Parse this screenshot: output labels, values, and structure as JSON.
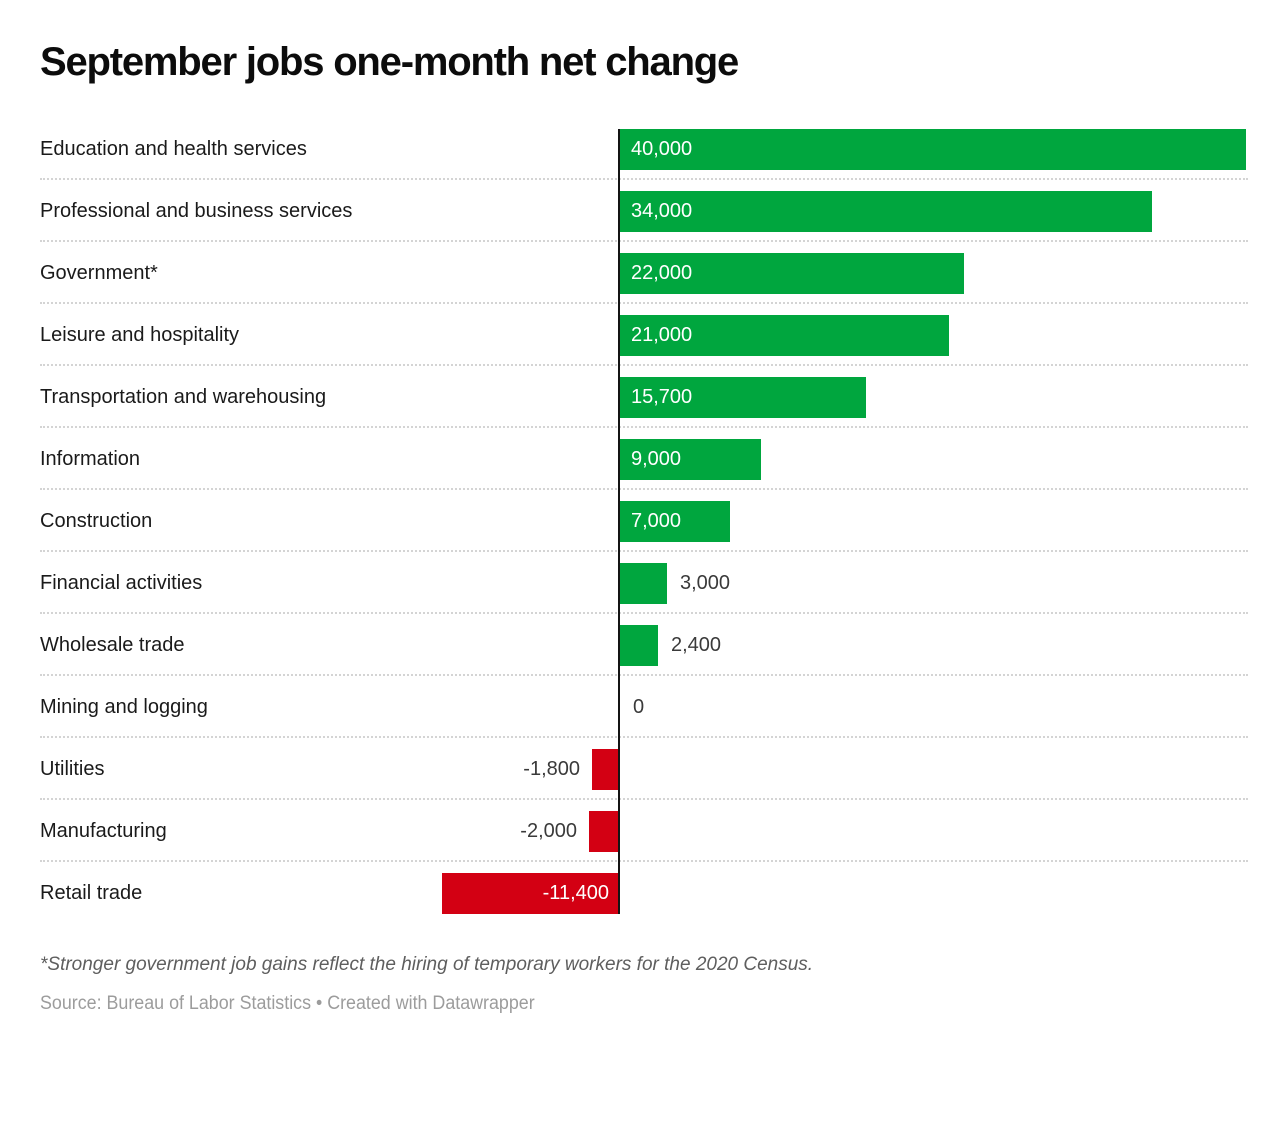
{
  "title": "September jobs one-month net change",
  "footnote": "*Stronger government job gains reflect the hiring of temporary workers for the 2020 Census.",
  "source": "Source: Bureau of Labor Statistics • Created with Datawrapper",
  "colors": {
    "positive": "#00a63e",
    "negative": "#d30013",
    "axis": "#141414"
  },
  "chart_data": {
    "type": "bar",
    "orientation": "horizontal",
    "title": "September jobs one-month net change",
    "xlabel": "",
    "ylabel": "",
    "xlim": [
      -11400,
      40000
    ],
    "grid": "dotted-row-separators",
    "legend": "none",
    "categories": [
      "Education and health services",
      "Professional and business services",
      "Government*",
      "Leisure and hospitality",
      "Transportation and warehousing",
      "Information",
      "Construction",
      "Financial activities",
      "Wholesale trade",
      "Mining and logging",
      "Utilities",
      "Manufacturing",
      "Retail trade"
    ],
    "values": [
      40000,
      34000,
      22000,
      21000,
      15700,
      9000,
      7000,
      3000,
      2400,
      0,
      -1800,
      -2000,
      -11400
    ],
    "value_labels": [
      "40,000",
      "34,000",
      "22,000",
      "21,000",
      "15,700",
      "9,000",
      "7,000",
      "3,000",
      "2,400",
      "0",
      "-1,800",
      "-2,000",
      "-11,400"
    ]
  }
}
